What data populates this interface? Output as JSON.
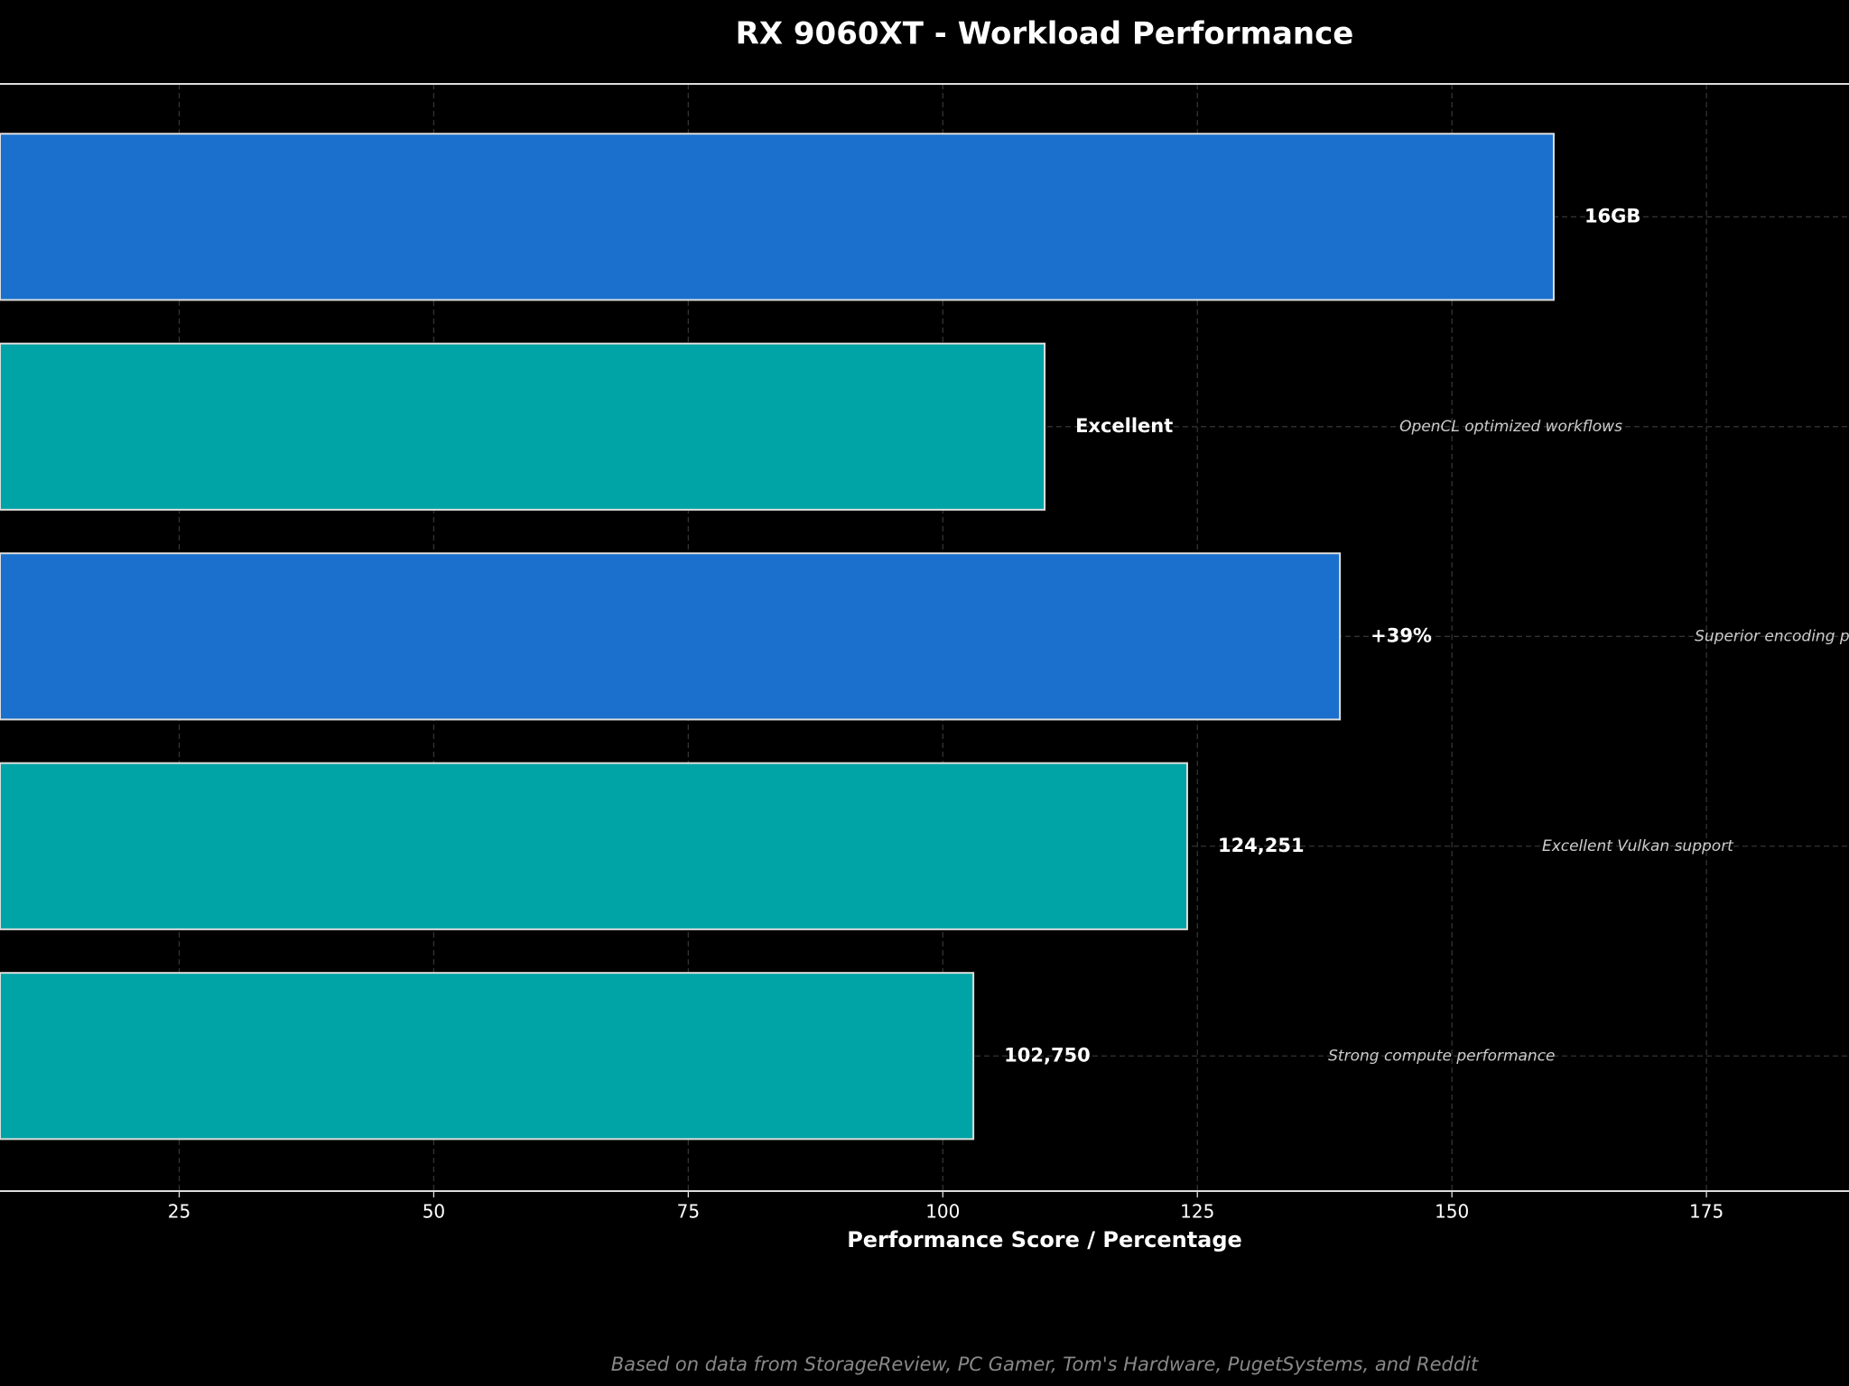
{
  "chart_data": {
    "type": "barh",
    "title": "RX 9060XT - Workload Performance",
    "xlabel": "Performance Score / Percentage",
    "footnote": "Based on data from StorageReview, PC Gamer, Tom's Hardware, PugetSystems, and Reddit",
    "values": [
      160,
      110,
      139,
      124,
      103
    ],
    "colors": [
      "#1a70cc",
      "#00a3a6",
      "#1a70cc",
      "#00a3a6",
      "#00a3a6"
    ],
    "bar_labels": [
      "16GB",
      "Excellent",
      "+39%",
      "124,251",
      "102,750"
    ],
    "notes": [
      null,
      "OpenCL optimized workflows",
      "Superior encoding p",
      "Excellent Vulkan support",
      "Strong compute performance"
    ],
    "xlim": [
      7.4,
      189
    ],
    "xticks": [
      25,
      50,
      75,
      100,
      125,
      150,
      175
    ],
    "grid": true
  }
}
